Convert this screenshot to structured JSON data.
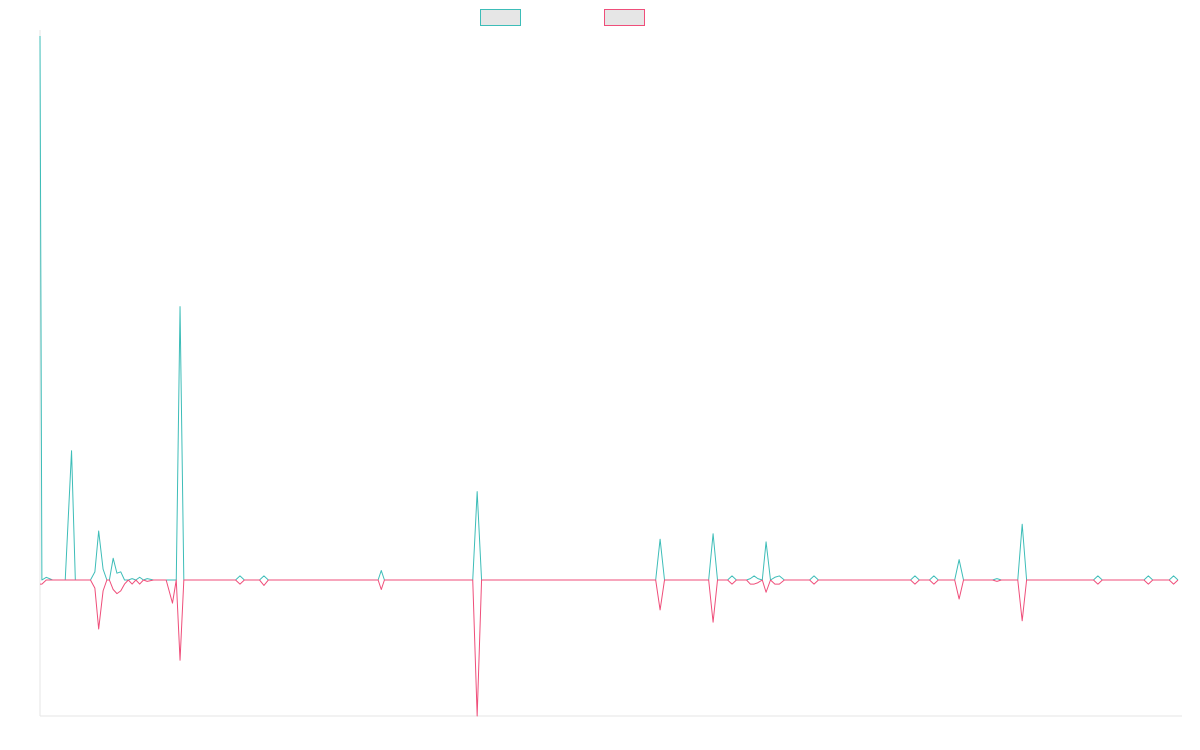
{
  "chart_data": {
    "type": "line",
    "title": "",
    "xlabel": "",
    "ylabel": "",
    "grid": false,
    "legend_position": "top-center",
    "ylim": [
      -100,
      400
    ],
    "series": [
      {
        "color": "#3dbdb8",
        "legend_fill": "#e6e6e6",
        "points": [
          [
            0,
            400
          ],
          [
            0.3,
            0
          ],
          [
            1,
            2
          ],
          [
            2,
            0
          ],
          [
            3,
            0
          ],
          [
            4,
            0
          ],
          [
            5,
            95
          ],
          [
            5.6,
            0
          ],
          [
            6,
            0
          ],
          [
            7,
            0
          ],
          [
            8,
            0
          ],
          [
            8.7,
            6
          ],
          [
            9.3,
            36
          ],
          [
            10,
            8
          ],
          [
            10.6,
            0
          ],
          [
            11,
            0
          ],
          [
            11.6,
            16
          ],
          [
            12.2,
            5
          ],
          [
            12.8,
            6
          ],
          [
            13.4,
            0
          ],
          [
            14,
            0
          ],
          [
            14.6,
            1
          ],
          [
            15.2,
            0
          ],
          [
            15.8,
            2
          ],
          [
            16.4,
            0
          ],
          [
            17,
            1
          ],
          [
            18,
            0
          ],
          [
            20,
            0
          ],
          [
            21,
            0
          ],
          [
            21.6,
            0
          ],
          [
            22.2,
            201
          ],
          [
            22.8,
            0
          ],
          [
            24,
            0
          ],
          [
            30,
            0
          ],
          [
            31,
            0
          ],
          [
            31.7,
            3
          ],
          [
            32.4,
            0
          ],
          [
            34,
            0
          ],
          [
            34.8,
            0
          ],
          [
            35.5,
            3
          ],
          [
            36.2,
            0
          ],
          [
            37,
            0
          ],
          [
            53,
            0
          ],
          [
            53.6,
            0
          ],
          [
            54.1,
            7
          ],
          [
            54.6,
            0
          ],
          [
            56,
            0
          ],
          [
            68,
            0
          ],
          [
            68.6,
            0
          ],
          [
            69.3,
            65
          ],
          [
            70,
            0
          ],
          [
            73,
            0
          ],
          [
            97,
            0
          ],
          [
            97.6,
            0
          ],
          [
            98.3,
            30
          ],
          [
            99,
            0
          ],
          [
            105,
            0
          ],
          [
            106,
            0
          ],
          [
            106.7,
            34
          ],
          [
            107.4,
            0
          ],
          [
            109,
            0
          ],
          [
            109.7,
            3
          ],
          [
            110.4,
            0
          ],
          [
            112,
            0
          ],
          [
            112.6,
            1
          ],
          [
            113.2,
            3
          ],
          [
            113.8,
            1
          ],
          [
            114.5,
            0
          ],
          [
            115.1,
            28
          ],
          [
            115.8,
            0
          ],
          [
            116.5,
            2
          ],
          [
            117.2,
            3
          ],
          [
            118,
            0
          ],
          [
            122,
            0
          ],
          [
            122.7,
            3
          ],
          [
            123.4,
            0
          ],
          [
            138,
            0
          ],
          [
            138.7,
            3
          ],
          [
            139.4,
            0
          ],
          [
            141,
            0
          ],
          [
            141.7,
            3
          ],
          [
            142.4,
            0
          ],
          [
            145,
            0
          ],
          [
            145.7,
            15
          ],
          [
            146.4,
            0
          ],
          [
            151,
            0
          ],
          [
            151.7,
            1
          ],
          [
            152.4,
            0
          ],
          [
            155,
            0
          ],
          [
            155.7,
            41
          ],
          [
            156.4,
            0
          ],
          [
            167,
            0
          ],
          [
            167.7,
            3
          ],
          [
            168.4,
            0
          ],
          [
            175,
            0
          ],
          [
            175.7,
            3
          ],
          [
            176.4,
            0
          ],
          [
            179,
            0
          ],
          [
            179.7,
            3
          ],
          [
            180.4,
            0
          ]
        ]
      },
      {
        "color": "#ef4e7a",
        "legend_fill": "#e6e6e6",
        "points": [
          [
            0,
            -3
          ],
          [
            0.3,
            -3
          ],
          [
            1,
            0
          ],
          [
            2,
            0
          ],
          [
            3,
            0
          ],
          [
            4,
            0
          ],
          [
            5,
            0
          ],
          [
            5.6,
            0
          ],
          [
            6,
            0
          ],
          [
            7,
            0
          ],
          [
            8,
            0
          ],
          [
            8.7,
            -6
          ],
          [
            9.3,
            -36
          ],
          [
            10,
            -8
          ],
          [
            10.6,
            0
          ],
          [
            11,
            0
          ],
          [
            11.6,
            -7
          ],
          [
            12.2,
            -10
          ],
          [
            12.8,
            -8
          ],
          [
            13.4,
            -3
          ],
          [
            14,
            0
          ],
          [
            14.6,
            -3
          ],
          [
            15.2,
            0
          ],
          [
            15.8,
            -3
          ],
          [
            16.4,
            0
          ],
          [
            17,
            -1
          ],
          [
            18,
            0
          ],
          [
            20,
            0
          ],
          [
            21,
            -17
          ],
          [
            21.6,
            0
          ],
          [
            22.2,
            -59
          ],
          [
            22.8,
            0
          ],
          [
            24,
            0
          ],
          [
            30,
            0
          ],
          [
            31,
            0
          ],
          [
            31.7,
            -3
          ],
          [
            32.4,
            0
          ],
          [
            34,
            0
          ],
          [
            34.8,
            0
          ],
          [
            35.5,
            -4
          ],
          [
            36.2,
            0
          ],
          [
            37,
            0
          ],
          [
            53,
            0
          ],
          [
            53.6,
            0
          ],
          [
            54.1,
            -7
          ],
          [
            54.6,
            0
          ],
          [
            56,
            0
          ],
          [
            68,
            0
          ],
          [
            68.6,
            0
          ],
          [
            69.3,
            -100
          ],
          [
            70,
            0
          ],
          [
            73,
            0
          ],
          [
            97,
            0
          ],
          [
            97.6,
            0
          ],
          [
            98.3,
            -22
          ],
          [
            99,
            0
          ],
          [
            105,
            0
          ],
          [
            106,
            0
          ],
          [
            106.7,
            -31
          ],
          [
            107.4,
            0
          ],
          [
            109,
            0
          ],
          [
            109.7,
            -3
          ],
          [
            110.4,
            0
          ],
          [
            112,
            0
          ],
          [
            112.6,
            -3
          ],
          [
            113.2,
            -3
          ],
          [
            113.8,
            -2
          ],
          [
            114.5,
            0
          ],
          [
            115.1,
            -9
          ],
          [
            115.8,
            0
          ],
          [
            116.5,
            -3
          ],
          [
            117.2,
            -3
          ],
          [
            118,
            0
          ],
          [
            122,
            0
          ],
          [
            122.7,
            -3
          ],
          [
            123.4,
            0
          ],
          [
            138,
            0
          ],
          [
            138.7,
            -3
          ],
          [
            139.4,
            0
          ],
          [
            141,
            0
          ],
          [
            141.7,
            -3
          ],
          [
            142.4,
            0
          ],
          [
            145,
            0
          ],
          [
            145.7,
            -14
          ],
          [
            146.4,
            0
          ],
          [
            151,
            0
          ],
          [
            151.7,
            -1
          ],
          [
            152.4,
            0
          ],
          [
            155,
            0
          ],
          [
            155.7,
            -30
          ],
          [
            156.4,
            0
          ],
          [
            167,
            0
          ],
          [
            167.7,
            -3
          ],
          [
            168.4,
            0
          ],
          [
            175,
            0
          ],
          [
            175.7,
            -3
          ],
          [
            176.4,
            0
          ],
          [
            179,
            0
          ],
          [
            179.7,
            -3
          ],
          [
            180.4,
            0
          ]
        ]
      }
    ]
  }
}
